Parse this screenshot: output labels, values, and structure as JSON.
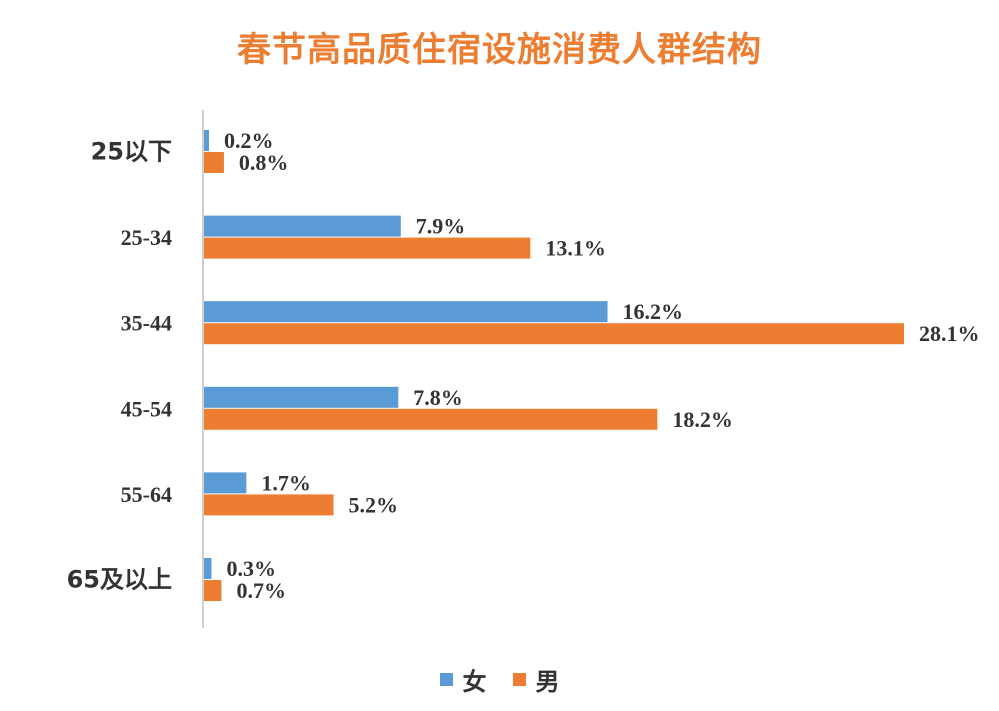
{
  "chart_data": {
    "type": "bar",
    "orientation": "horizontal",
    "title": "春节高品质住宿设施消费人群结构",
    "categories": [
      "25以下",
      "25-34",
      "35-44",
      "45-54",
      "55-64",
      "65及以上"
    ],
    "series": [
      {
        "name": "女",
        "color": "#5B9BD5",
        "values": [
          0.2,
          7.9,
          16.2,
          7.8,
          1.7,
          0.3
        ],
        "labels": [
          "0.2%",
          "7.9%",
          "16.2%",
          "7.8%",
          "1.7%",
          "0.3%"
        ]
      },
      {
        "name": "男",
        "color": "#ED7D31",
        "values": [
          0.8,
          13.1,
          28.1,
          18.2,
          5.2,
          0.7
        ],
        "labels": [
          "0.8%",
          "13.1%",
          "28.1%",
          "18.2%",
          "5.2%",
          "0.7%"
        ]
      }
    ],
    "xlim": [
      0,
      28.1
    ],
    "grid": false,
    "legend_position": "bottom"
  }
}
